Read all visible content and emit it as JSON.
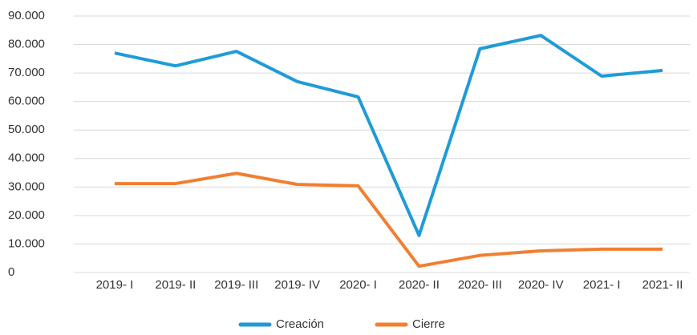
{
  "chart_data": {
    "type": "line",
    "categories": [
      "2019- I",
      "2019- II",
      "2019- III",
      "2019- IV",
      "2020- I",
      "2020- II",
      "2020- III",
      "2020- IV",
      "2021- I",
      "2021- II"
    ],
    "series": [
      {
        "name": "Creación",
        "color": "#1f9bd7",
        "values": [
          77000,
          72500,
          77600,
          67000,
          61600,
          13000,
          78500,
          83200,
          68900,
          70900
        ]
      },
      {
        "name": "Cierre",
        "color": "#f07f32",
        "values": [
          31200,
          31200,
          34800,
          30900,
          30400,
          2200,
          6000,
          7600,
          8200,
          8200
        ]
      }
    ],
    "ylim": [
      0,
      90000
    ],
    "yticks": [
      0,
      {
        "value": 10000,
        "label": "10.000"
      },
      {
        "value": 20000,
        "label": "20.000"
      },
      {
        "value": 30000,
        "label": "30.000"
      },
      {
        "value": 40000,
        "label": "40.000"
      },
      {
        "value": 50000,
        "label": "50.000"
      },
      {
        "value": 60000,
        "label": "60.000"
      },
      {
        "value": 70000,
        "label": "70.000"
      },
      {
        "value": 80000,
        "label": "80.000"
      },
      {
        "value": 90000,
        "label": "90.000"
      }
    ],
    "grid": true,
    "legend": "bottom"
  }
}
